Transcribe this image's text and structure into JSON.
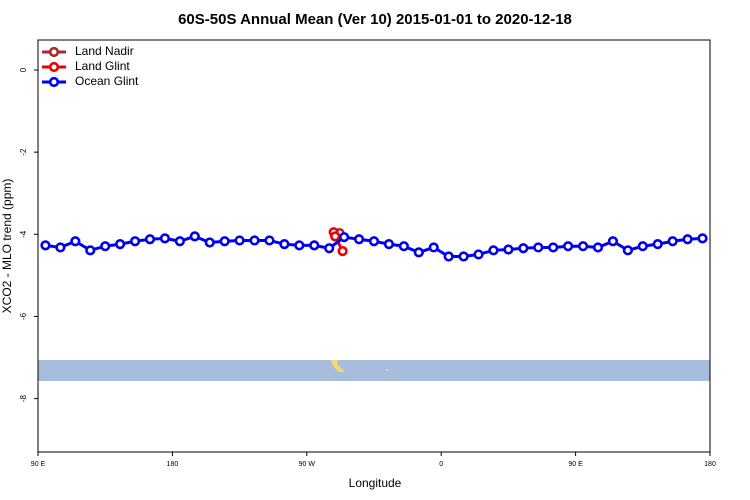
{
  "chart_data": {
    "type": "line",
    "title": "60S-50S Annual Mean (Ver 10)   2015-01-01 to 2020-12-18",
    "xlabel": "Longitude",
    "ylabel": "XCO2 - MLO trend (ppm)",
    "xlim": [
      90,
      540
    ],
    "ylim": [
      -9.3,
      0.73
    ],
    "xticks": [
      {
        "value": 90,
        "label": "90 E"
      },
      {
        "value": 180,
        "label": "180"
      },
      {
        "value": 270,
        "label": "90 W"
      },
      {
        "value": 360,
        "label": "0"
      },
      {
        "value": 450,
        "label": "90 E"
      },
      {
        "value": 540,
        "label": "180"
      }
    ],
    "yticks": [
      0,
      -2,
      -4,
      -6,
      -8
    ],
    "legend": "top-left",
    "series": [
      {
        "name": "Land Nadir",
        "color": "#a52a2a",
        "x": [
          292
        ],
        "values": [
          -3.97
        ]
      },
      {
        "name": "Land Glint",
        "color": "#ee0000",
        "x": [
          288,
          289,
          294
        ],
        "values": [
          -3.95,
          -4.05,
          -4.41
        ]
      },
      {
        "name": "Ocean Glint",
        "color": "#0000ee",
        "x": [
          95,
          105,
          115,
          125,
          135,
          145,
          155,
          165,
          175,
          185,
          195,
          205,
          215,
          225,
          235,
          245,
          255,
          265,
          275,
          285,
          295,
          305,
          315,
          325,
          335,
          345,
          355,
          365,
          375,
          385,
          395,
          405,
          415,
          425,
          435,
          445,
          455,
          465,
          475,
          485,
          495,
          505,
          515,
          525,
          535
        ],
        "values": [
          -4.27,
          -4.32,
          -4.17,
          -4.39,
          -4.29,
          -4.24,
          -4.17,
          -4.12,
          -4.1,
          -4.17,
          -4.05,
          -4.2,
          -4.17,
          -4.15,
          -4.15,
          -4.15,
          -4.24,
          -4.27,
          -4.27,
          -4.34,
          -4.07,
          -4.12,
          -4.17,
          -4.24,
          -4.29,
          -4.44,
          -4.32,
          -4.54,
          -4.54,
          -4.49,
          -4.39,
          -4.37,
          -4.34,
          -4.32,
          -4.32,
          -4.29,
          -4.29,
          -4.32,
          -4.17,
          -4.39,
          -4.29,
          -4.24,
          -4.17,
          -4.12,
          -4.1
        ]
      }
    ]
  }
}
